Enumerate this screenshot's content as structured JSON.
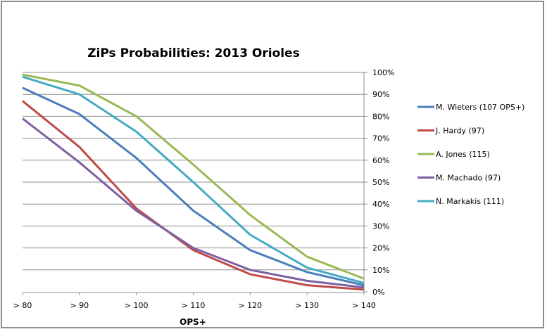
{
  "chart_data": {
    "type": "line",
    "title": "ZiPs Probabilities:  2013 Orioles",
    "xlabel": "OPS+",
    "ylabel": "",
    "categories": [
      "> 80",
      "> 90",
      "> 100",
      "> 110",
      "> 120",
      "> 130",
      "> 140"
    ],
    "ylim": [
      0,
      100
    ],
    "yticks": [
      "0%",
      "10%",
      "20%",
      "30%",
      "40%",
      "50%",
      "60%",
      "70%",
      "80%",
      "90%",
      "100%"
    ],
    "grid": true,
    "legend_position": "right",
    "series": [
      {
        "name": "M. Wieters (107 OPS+)",
        "color": "#4a7ebb",
        "values": [
          93,
          81,
          61,
          37,
          19,
          9,
          3
        ]
      },
      {
        "name": "J. Hardy (97)",
        "color": "#be4b48",
        "values": [
          87,
          66,
          38,
          19,
          8,
          3,
          1
        ]
      },
      {
        "name": "A. Jones (115)",
        "color": "#98b954",
        "values": [
          99,
          94,
          80,
          58,
          35,
          16,
          6
        ]
      },
      {
        "name": "M. Machado (97)",
        "color": "#7d60a0",
        "values": [
          79,
          59,
          37,
          20,
          10,
          5,
          2
        ]
      },
      {
        "name": "N. Markakis (111)",
        "color": "#46aac5",
        "values": [
          98,
          90,
          73,
          50,
          26,
          11,
          4
        ]
      }
    ]
  }
}
